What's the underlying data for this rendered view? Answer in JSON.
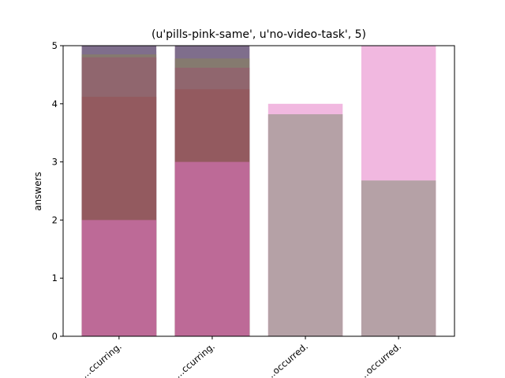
{
  "chart_data": {
    "type": "bar",
    "title": "(u'pills-pink-same', u'no-video-task', 5)",
    "xlabel": "",
    "ylabel": "answers",
    "ylim": [
      0,
      5
    ],
    "yticks": [
      "0",
      "1",
      "2",
      "3",
      "4",
      "5"
    ],
    "categories": [
      "...ccurring.",
      "...ccurring.",
      "...occurred.",
      "...occurred."
    ],
    "layers": [
      {
        "color": "#f1b8e0",
        "values": [
          5,
          5,
          4,
          5
        ]
      },
      {
        "color": "#b5a1a6",
        "values": [
          4.9,
          4.95,
          3.82,
          2.68
        ]
      },
      {
        "color": "#7f6e8c",
        "values": [
          5,
          5,
          0,
          0
        ]
      },
      {
        "color": "#857a6f",
        "values": [
          4.85,
          4.78,
          0,
          0
        ]
      },
      {
        "color": "#90666e",
        "values": [
          4.8,
          4.62,
          0,
          0
        ]
      },
      {
        "color": "#935a5f",
        "values": [
          4.12,
          4.25,
          0,
          0
        ]
      },
      {
        "color": "#bd6a97",
        "values": [
          2.0,
          3.0,
          0,
          0
        ]
      }
    ],
    "grid": false,
    "legend": "none"
  }
}
